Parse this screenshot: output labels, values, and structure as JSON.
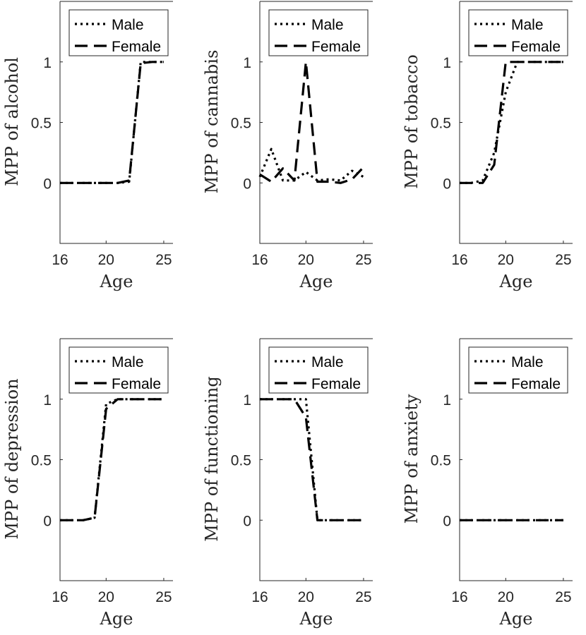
{
  "chart_data": [
    {
      "type": "line",
      "xlabel": "Age",
      "ylabel": "MPP of alcohol",
      "xlim": [
        16,
        25.8
      ],
      "ylim": [
        -0.5,
        1.5
      ],
      "xticks": [
        16,
        20,
        25
      ],
      "yticks": [
        0,
        0.5,
        1
      ],
      "legend_position": "top",
      "series": [
        {
          "name": "Male",
          "style": "dotted",
          "x": [
            16,
            17,
            18,
            19,
            20,
            21,
            22,
            23,
            24,
            25
          ],
          "y": [
            0,
            0,
            0,
            0,
            0,
            0,
            0.01,
            1,
            1,
            1
          ]
        },
        {
          "name": "Female",
          "style": "dashed",
          "x": [
            16,
            17,
            18,
            19,
            20,
            21,
            22,
            23,
            24,
            25
          ],
          "y": [
            0,
            0,
            0,
            0,
            0,
            0,
            0.02,
            0.99,
            1,
            1
          ]
        }
      ]
    },
    {
      "type": "line",
      "xlabel": "Age",
      "ylabel": "MPP of cannabis",
      "xlim": [
        16,
        25.8
      ],
      "ylim": [
        -0.5,
        1.5
      ],
      "xticks": [
        16,
        20,
        25
      ],
      "yticks": [
        0,
        0.5,
        1
      ],
      "legend_position": "top",
      "series": [
        {
          "name": "Male",
          "style": "dotted",
          "x": [
            16,
            17,
            18,
            19,
            20,
            21,
            22,
            23,
            24,
            25
          ],
          "y": [
            0.05,
            0.28,
            0.02,
            0.02,
            0.09,
            0.02,
            0.03,
            0.02,
            0.1,
            0.05
          ]
        },
        {
          "name": "Female",
          "style": "dashed",
          "x": [
            16,
            17,
            18,
            19,
            20,
            21,
            22,
            23,
            24,
            25
          ],
          "y": [
            0.07,
            0.01,
            0.12,
            0.02,
            1,
            0.01,
            0.01,
            0,
            0.03,
            0.13
          ]
        }
      ]
    },
    {
      "type": "line",
      "xlabel": "Age",
      "ylabel": "MPP of tobacco",
      "xlim": [
        16,
        25.8
      ],
      "ylim": [
        -0.5,
        1.5
      ],
      "xticks": [
        16,
        20,
        25
      ],
      "yticks": [
        0,
        0.5,
        1
      ],
      "legend_position": "top",
      "series": [
        {
          "name": "Male",
          "style": "dotted",
          "x": [
            16,
            17,
            18,
            19,
            20,
            21,
            22,
            23,
            24,
            25
          ],
          "y": [
            0,
            0,
            0.02,
            0.25,
            0.75,
            1,
            1,
            1,
            1,
            1
          ]
        },
        {
          "name": "Female",
          "style": "dashed",
          "x": [
            16,
            17,
            18,
            19,
            20,
            21,
            22,
            23,
            24,
            25
          ],
          "y": [
            0,
            0,
            0,
            0.15,
            1,
            1,
            1,
            1,
            1,
            1
          ]
        }
      ]
    },
    {
      "type": "line",
      "xlabel": "Age",
      "ylabel": "MPP of depression",
      "xlim": [
        16,
        25.8
      ],
      "ylim": [
        -0.5,
        1.5
      ],
      "xticks": [
        16,
        20,
        25
      ],
      "yticks": [
        0,
        0.5,
        1
      ],
      "legend_position": "top",
      "series": [
        {
          "name": "Male",
          "style": "dotted",
          "x": [
            16,
            17,
            18,
            19,
            20,
            21,
            22,
            23,
            24,
            25
          ],
          "y": [
            0,
            0,
            0,
            0.02,
            0.96,
            1,
            1,
            1,
            1,
            1
          ]
        },
        {
          "name": "Female",
          "style": "dashed",
          "x": [
            16,
            17,
            18,
            19,
            20,
            21,
            22,
            23,
            24,
            25
          ],
          "y": [
            0,
            0,
            0,
            0.02,
            0.92,
            1,
            1,
            1,
            1,
            1
          ]
        }
      ]
    },
    {
      "type": "line",
      "xlabel": "Age",
      "ylabel": "MPP of functioning",
      "xlim": [
        16,
        25.8
      ],
      "ylim": [
        -0.5,
        1.5
      ],
      "xticks": [
        16,
        20,
        25
      ],
      "yticks": [
        0,
        0.5,
        1
      ],
      "legend_position": "top",
      "series": [
        {
          "name": "Male",
          "style": "dotted",
          "x": [
            16,
            17,
            18,
            19,
            20,
            21,
            22,
            23,
            24,
            25
          ],
          "y": [
            1,
            1,
            1,
            1,
            1,
            0,
            0,
            0,
            0,
            0
          ]
        },
        {
          "name": "Female",
          "style": "dashed",
          "x": [
            16,
            17,
            18,
            19,
            20,
            21,
            22,
            23,
            24,
            25
          ],
          "y": [
            1,
            1,
            1,
            1,
            0.85,
            0,
            0,
            0,
            0,
            0
          ]
        }
      ]
    },
    {
      "type": "line",
      "xlabel": "Age",
      "ylabel": "MPP of anxiety",
      "xlim": [
        16,
        25.8
      ],
      "ylim": [
        -0.5,
        1.5
      ],
      "xticks": [
        16,
        20,
        25
      ],
      "yticks": [
        0,
        0.5,
        1
      ],
      "legend_position": "top",
      "series": [
        {
          "name": "Male",
          "style": "dotted",
          "x": [
            16,
            17,
            18,
            19,
            20,
            21,
            22,
            23,
            24,
            25
          ],
          "y": [
            0,
            0,
            0,
            0,
            0,
            0,
            0,
            0,
            0,
            0
          ]
        },
        {
          "name": "Female",
          "style": "dashed",
          "x": [
            16,
            17,
            18,
            19,
            20,
            21,
            22,
            23,
            24,
            25
          ],
          "y": [
            0,
            0,
            0,
            0,
            0,
            0,
            0,
            0,
            0,
            0
          ]
        }
      ]
    }
  ]
}
